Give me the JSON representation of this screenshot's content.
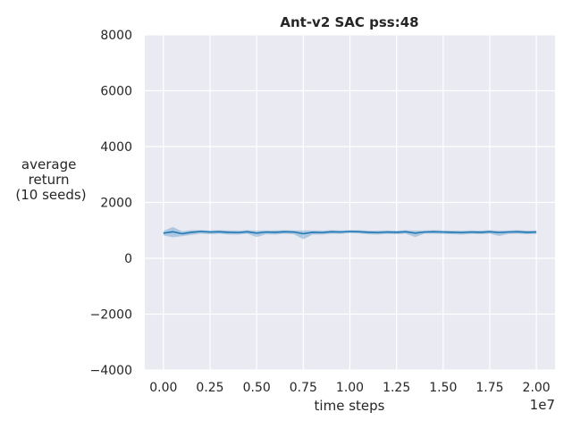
{
  "chart_data": {
    "type": "line",
    "title": "Ant-v2 SAC pss:48",
    "xlabel": "time steps",
    "ylabel_lines": [
      "average",
      "return",
      "(10 seeds)"
    ],
    "x_offset_label": "1e7",
    "xlim": [
      -0.1,
      2.1
    ],
    "ylim": [
      -4000,
      8000
    ],
    "xticks": [
      0.0,
      0.25,
      0.5,
      0.75,
      1.0,
      1.25,
      1.5,
      1.75,
      2.0
    ],
    "xtick_labels": [
      "0.00",
      "0.25",
      "0.50",
      "0.75",
      "1.00",
      "1.25",
      "1.50",
      "1.75",
      "2.00"
    ],
    "yticks": [
      -4000,
      -2000,
      0,
      2000,
      4000,
      6000,
      8000
    ],
    "ytick_labels": [
      "−4000",
      "−2000",
      "0",
      "2000",
      "4000",
      "6000",
      "8000"
    ],
    "grid": true,
    "colors": {
      "background": "#eaeaf2",
      "grid": "#ffffff",
      "line": "#1f77b4",
      "band": "#1f77b4"
    },
    "series": [
      {
        "x": [
          0.0,
          0.05,
          0.1,
          0.15,
          0.2,
          0.25,
          0.3,
          0.35,
          0.4,
          0.45,
          0.5,
          0.55,
          0.6,
          0.65,
          0.7,
          0.75,
          0.8,
          0.85,
          0.9,
          0.95,
          1.0,
          1.05,
          1.1,
          1.15,
          1.2,
          1.25,
          1.3,
          1.35,
          1.4,
          1.45,
          1.5,
          1.55,
          1.6,
          1.65,
          1.7,
          1.75,
          1.8,
          1.85,
          1.9,
          1.95,
          2.0
        ],
        "y": [
          900,
          950,
          880,
          930,
          960,
          940,
          950,
          930,
          920,
          950,
          900,
          940,
          930,
          950,
          940,
          880,
          930,
          920,
          950,
          940,
          960,
          950,
          930,
          920,
          940,
          930,
          950,
          900,
          940,
          950,
          940,
          930,
          920,
          940,
          930,
          950,
          920,
          940,
          950,
          930,
          940
        ],
        "y_low": [
          820,
          750,
          790,
          840,
          880,
          860,
          880,
          850,
          850,
          880,
          760,
          860,
          850,
          880,
          860,
          680,
          850,
          850,
          880,
          870,
          900,
          890,
          860,
          850,
          870,
          860,
          880,
          760,
          880,
          880,
          870,
          860,
          850,
          870,
          860,
          880,
          800,
          870,
          880,
          860,
          870
        ],
        "y_high": [
          980,
          1120,
          970,
          1010,
          1010,
          1000,
          1010,
          1000,
          990,
          1010,
          990,
          1000,
          1000,
          1010,
          1000,
          1000,
          1000,
          990,
          1010,
          1000,
          1010,
          1010,
          990,
          990,
          1000,
          990,
          1010,
          990,
          1000,
          1010,
          1000,
          990,
          990,
          1000,
          990,
          1010,
          990,
          1000,
          1010,
          990,
          1000
        ]
      }
    ]
  }
}
